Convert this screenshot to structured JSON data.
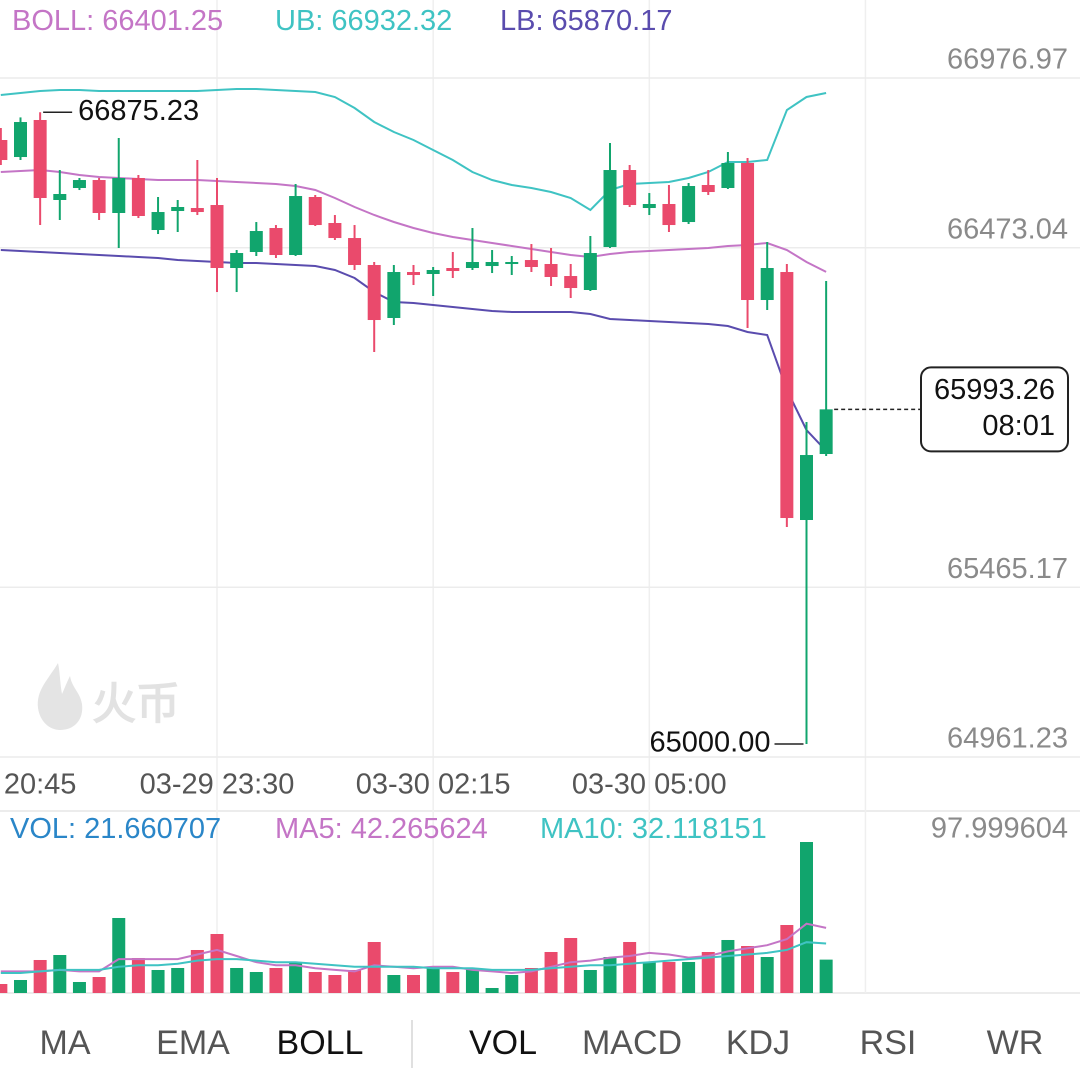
{
  "chart_data": [
    {
      "type": "candlestick",
      "x": [
        null,
        null,
        "20:45",
        null,
        null,
        null,
        null,
        null,
        null,
        null,
        null,
        "03-29 23:30",
        null,
        null,
        null,
        null,
        null,
        null,
        null,
        null,
        null,
        null,
        "03-30 02:15",
        null,
        null,
        null,
        null,
        null,
        null,
        null,
        null,
        null,
        null,
        "03-30 05:00",
        null,
        null,
        null,
        null,
        null,
        null,
        null,
        null,
        null
      ],
      "open": [
        66792.9,
        66742.4,
        66852.3,
        66614.8,
        66650.4,
        66674.1,
        66576.2,
        66680.1,
        66525.7,
        66582.1,
        66591.0,
        66599.9,
        66412.9,
        66460.4,
        66531.6,
        66451.5,
        66623.7,
        66546.5,
        66501.9,
        66421.8,
        66264.5,
        66401.0,
        66395.1,
        66412.9,
        66412.9,
        66418.8,
        66424.8,
        66436.6,
        66424.8,
        66389.1,
        66347.6,
        66475.2,
        66703.8,
        66591.0,
        66602.9,
        66549.4,
        66659.3,
        66650.4,
        66724.6,
        66317.9,
        66401.0,
        65664.8,
        65860.7
      ],
      "high": [
        66828.5,
        66860.0,
        66875.23,
        66703.8,
        66680.1,
        66680.1,
        66798.8,
        66689.0,
        66623.7,
        66614.8,
        66733.5,
        66680.1,
        66466.3,
        66549.4,
        66540.5,
        66662.3,
        66629.6,
        66570.2,
        66540.5,
        66430.7,
        66421.8,
        66421.8,
        66415.9,
        66460.4,
        66531.6,
        66466.3,
        66448.5,
        66484.1,
        66472.3,
        66424.8,
        66507.9,
        66784.0,
        66718.7,
        66635.5,
        66659.3,
        66665.2,
        66703.8,
        66757.3,
        66739.4,
        66490.1,
        66424.8,
        65955.7,
        66374.3
      ],
      "low": [
        66718.7,
        66733.5,
        66540.5,
        66555.4,
        66644.4,
        66555.4,
        66472.3,
        66561.3,
        66513.8,
        66519.8,
        66570.2,
        66341.6,
        66341.6,
        66448.5,
        66442.6,
        66448.5,
        66537.6,
        66496.0,
        66407.0,
        66163.5,
        66243.7,
        66362.4,
        66329.8,
        66383.2,
        66407.0,
        66398.0,
        66392.1,
        66401.0,
        66359.5,
        66323.8,
        66344.6,
        66472.3,
        66594.0,
        66570.2,
        66519.8,
        66543.5,
        66629.6,
        66647.4,
        66234.8,
        66288.2,
        65644.0,
        65000,
        65854.8
      ],
      "close": [
        66733.5,
        66846.3,
        66620.7,
        66632.6,
        66674.1,
        66576.2,
        66680.1,
        66567.3,
        66579.1,
        66594.0,
        66579.1,
        66412.9,
        66457.4,
        66522.7,
        66451.5,
        66626.6,
        66540.5,
        66501.9,
        66421.8,
        66258.5,
        66401.0,
        66392.1,
        66407.0,
        66404.0,
        66430.7,
        66430.7,
        66430.7,
        66415.9,
        66386.2,
        66353.5,
        66457.4,
        66703.8,
        66599.9,
        66602.9,
        66540.5,
        66656.3,
        66638.5,
        66724.6,
        66317.9,
        66412.9,
        65670.7,
        65857.7,
        65993.26
      ],
      "up_color": "#11a56d",
      "down_color": "#ea4a6c",
      "series": [
        {
          "name": "BOLL:",
          "color": "#c475c6",
          "values": [
            66697.9,
            66700.9,
            66703.8,
            66697.9,
            66689.0,
            66683.0,
            66680.1,
            66677.1,
            66674.1,
            66674.1,
            66674.1,
            66671.2,
            66668.2,
            66665.2,
            66662.3,
            66656.3,
            66644.4,
            66620.7,
            66594.0,
            66570.2,
            66549.4,
            66531.6,
            66516.8,
            66504.9,
            66496.0,
            66487.1,
            66478.2,
            66469.3,
            66460.4,
            66451.5,
            66445.5,
            66454.5,
            66460.4,
            66463.4,
            66466.3,
            66469.3,
            66472.3,
            66478.2,
            66481.2,
            66487.1,
            66466.3,
            66430.7,
            66401.25
          ]
        },
        {
          "name": "UB:",
          "color": "#3fc3c3",
          "values": [
            66926.5,
            66932.4,
            66938.3,
            66941.3,
            66941.3,
            66938.3,
            66938.3,
            66938.3,
            66938.3,
            66938.3,
            66938.3,
            66941.3,
            66944.3,
            66944.3,
            66941.3,
            66938.3,
            66935.4,
            66920.5,
            66887.9,
            66846.3,
            66816.6,
            66792.9,
            66763.2,
            66733.5,
            66697.9,
            66674.1,
            66659.3,
            66650.4,
            66638.5,
            66620.7,
            66585.1,
            66644.4,
            66662.3,
            66665.2,
            66668.2,
            66680.1,
            66697.9,
            66727.6,
            66727.6,
            66733.5,
            66881.9,
            66920.5,
            66932.32
          ]
        },
        {
          "name": "LB:",
          "color": "#5a4cae",
          "values": [
            66466.3,
            66463.4,
            66460.4,
            66457.4,
            66454.5,
            66451.5,
            66448.5,
            66445.5,
            66442.6,
            66436.6,
            66433.7,
            66430.7,
            66427.7,
            66427.7,
            66424.8,
            66421.8,
            66418.8,
            66407.0,
            66383.2,
            66341.6,
            66312.0,
            66309.0,
            66303.0,
            66297.1,
            66291.2,
            66285.2,
            66282.3,
            66282.3,
            66282.3,
            66282.3,
            66276.3,
            66261.5,
            66258.5,
            66255.5,
            66252.6,
            66249.6,
            66246.6,
            66240.7,
            66222.9,
            66214.0,
            66050.7,
            65932.0,
            65870.17
          ]
        }
      ],
      "ylim": [
        64961.23,
        66976.97
      ],
      "yticks": [
        66976.97,
        66473.04,
        65465.17,
        64961.23
      ],
      "low_label": "65000.00",
      "countdown": "08:01",
      "grid": true
    },
    {
      "type": "bar",
      "series": [
        {
          "name": "VOL:",
          "type": "bar",
          "color": "#2a86c8",
          "values": [
            5.84,
            8.44,
            21.42,
            24.66,
            7.14,
            10.38,
            48.68,
            22.72,
            14.93,
            16.23,
            27.91,
            38.29,
            16.23,
            13.63,
            16.23,
            19.47,
            13.63,
            11.68,
            14.93,
            33.1,
            11.68,
            11.68,
            16.23,
            13.63,
            16.23,
            3.25,
            11.68,
            16.23,
            26.61,
            35.7,
            14.93,
            23.36,
            33.1,
            20.12,
            20.12,
            20.12,
            26.61,
            34.4,
            30.5,
            23.36,
            44.13,
            97.999604,
            21.660707
          ]
        },
        {
          "name": "MA5:",
          "type": "line",
          "color": "#c475c6",
          "values": [
            14,
            14,
            14,
            15,
            14,
            14,
            22,
            22,
            22,
            22,
            25,
            28,
            24,
            20,
            18,
            18,
            16,
            15,
            14,
            18,
            17,
            16,
            17,
            17,
            15,
            14,
            13,
            14,
            17,
            20,
            21,
            23,
            24,
            26,
            25,
            23,
            24,
            27,
            29,
            31,
            35,
            45,
            42.265624
          ]
        },
        {
          "name": "MA10:",
          "type": "line",
          "color": "#3fc3c3",
          "values": [
            13,
            13,
            14,
            15,
            15,
            15,
            17,
            18,
            18,
            19,
            21,
            22,
            22,
            21,
            20,
            20,
            19,
            18,
            17,
            17,
            17,
            17,
            16,
            16,
            16,
            15,
            15,
            15,
            16,
            17,
            18,
            18,
            19,
            20,
            21,
            22,
            23,
            24,
            25,
            26,
            28,
            33,
            32.118151
          ]
        }
      ],
      "ylim": [
        0,
        97.999604
      ],
      "yticks": [
        97.999604
      ]
    }
  ],
  "watermark": "火币",
  "tabs": {
    "main": [
      "MA",
      "EMA",
      "BOLL"
    ],
    "sub": [
      "VOL",
      "MACD",
      "KDJ",
      "RSI",
      "WR"
    ]
  }
}
